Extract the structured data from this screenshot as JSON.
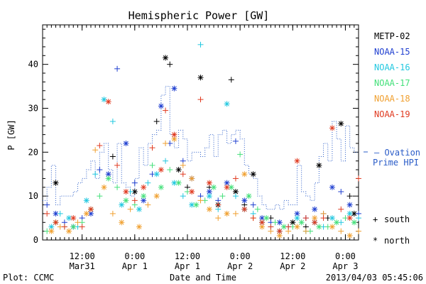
{
  "chart_data": {
    "type": "scatter",
    "title": "Hemispheric Power [GW]",
    "ylabel": "P [GW]",
    "xlabel": "Date and Time",
    "ylim": [
      0,
      49
    ],
    "yticks": [
      0,
      10,
      20,
      30,
      40
    ],
    "xlim_hours": [
      0,
      72
    ],
    "xticks": [
      {
        "h": 9,
        "top": "12:00",
        "bottom": "Mar31"
      },
      {
        "h": 21,
        "top": "0:00",
        "bottom": "Apr 1"
      },
      {
        "h": 33,
        "top": "12:00",
        "bottom": "Apr 1"
      },
      {
        "h": 45,
        "top": "0:00",
        "bottom": "Apr 2"
      },
      {
        "h": 57,
        "top": "12:00",
        "bottom": "Apr 2"
      },
      {
        "h": 69,
        "top": "0:00",
        "bottom": "Apr 3"
      }
    ],
    "legend": {
      "placement": "right",
      "entries": [
        {
          "name": "METP-02",
          "color": "#000000"
        },
        {
          "name": "NOAA-15",
          "color": "#1f3fd0"
        },
        {
          "name": "NOAA-16",
          "color": "#22c8e0"
        },
        {
          "name": "NOAA-17",
          "color": "#44e07a"
        },
        {
          "name": "NOAA-18",
          "color": "#f0a030"
        },
        {
          "name": "NOAA-19",
          "color": "#e03a20"
        }
      ]
    },
    "ovation": {
      "label_line1": "— Ovation",
      "label_line2": "Prime HPI",
      "color": "#2a5cc8",
      "steps": [
        [
          0,
          9
        ],
        [
          1,
          12
        ],
        [
          2,
          17
        ],
        [
          3,
          8
        ],
        [
          4,
          10
        ],
        [
          6,
          10
        ],
        [
          7,
          11
        ],
        [
          8,
          13
        ],
        [
          9,
          14
        ],
        [
          10,
          16
        ],
        [
          11,
          18
        ],
        [
          12,
          14
        ],
        [
          13,
          20
        ],
        [
          14,
          22
        ],
        [
          15,
          16
        ],
        [
          16,
          13
        ],
        [
          17,
          22
        ],
        [
          18,
          13
        ],
        [
          19,
          12
        ],
        [
          20,
          10
        ],
        [
          21,
          14
        ],
        [
          22,
          21
        ],
        [
          23,
          17
        ],
        [
          24,
          22
        ],
        [
          25,
          24
        ],
        [
          26,
          25
        ],
        [
          27,
          33
        ],
        [
          28,
          35
        ],
        [
          29,
          24
        ],
        [
          30,
          21
        ],
        [
          31,
          25
        ],
        [
          32,
          23
        ],
        [
          33,
          18
        ],
        [
          34,
          20
        ],
        [
          35,
          20
        ],
        [
          36,
          19
        ],
        [
          37,
          21
        ],
        [
          38,
          24
        ],
        [
          39,
          19
        ],
        [
          40,
          24
        ],
        [
          41,
          25
        ],
        [
          42,
          22
        ],
        [
          43,
          24
        ],
        [
          44,
          25
        ],
        [
          45,
          23
        ],
        [
          46,
          17
        ],
        [
          47,
          15
        ],
        [
          48,
          14
        ],
        [
          49,
          10
        ],
        [
          50,
          8
        ],
        [
          51,
          7
        ],
        [
          52,
          7
        ],
        [
          53,
          8
        ],
        [
          54,
          7
        ],
        [
          55,
          9
        ],
        [
          56,
          8
        ],
        [
          57,
          8
        ],
        [
          58,
          17
        ],
        [
          59,
          11
        ],
        [
          60,
          10
        ],
        [
          61,
          9
        ],
        [
          62,
          13
        ],
        [
          63,
          19
        ],
        [
          64,
          22
        ],
        [
          65,
          18
        ],
        [
          66,
          27
        ],
        [
          67,
          23
        ],
        [
          68,
          18
        ],
        [
          69,
          26
        ],
        [
          70,
          21
        ],
        [
          71,
          20
        ],
        [
          72,
          20
        ]
      ]
    },
    "symbols": [
      {
        "name": "south",
        "glyph": "+"
      },
      {
        "name": "north",
        "glyph": "*"
      }
    ],
    "series": [
      {
        "name": "METP-02",
        "points": [
          [
            3,
            13
          ],
          [
            16,
            19
          ],
          [
            21,
            11
          ],
          [
            26,
            27
          ],
          [
            28,
            41.5
          ],
          [
            29,
            40
          ],
          [
            31,
            16
          ],
          [
            33,
            12
          ],
          [
            36,
            37
          ],
          [
            38,
            12
          ],
          [
            40,
            8
          ],
          [
            43,
            36.5
          ],
          [
            44,
            11
          ],
          [
            46,
            8
          ],
          [
            48,
            15
          ],
          [
            52,
            5
          ],
          [
            57,
            4
          ],
          [
            60,
            3
          ],
          [
            63,
            17
          ],
          [
            65,
            5
          ],
          [
            68,
            26.5
          ],
          [
            70,
            10
          ],
          [
            71,
            6
          ]
        ]
      },
      {
        "name": "NOAA-15",
        "points": [
          [
            1,
            8
          ],
          [
            3,
            6
          ],
          [
            5,
            4
          ],
          [
            7,
            3
          ],
          [
            9,
            5
          ],
          [
            11,
            6
          ],
          [
            13,
            16
          ],
          [
            15,
            15
          ],
          [
            17,
            39
          ],
          [
            19,
            22
          ],
          [
            21,
            13
          ],
          [
            23,
            9
          ],
          [
            25,
            15
          ],
          [
            27,
            30.5
          ],
          [
            29,
            22
          ],
          [
            30,
            34.5
          ],
          [
            32,
            18
          ],
          [
            34,
            14
          ],
          [
            36,
            10
          ],
          [
            38,
            11
          ],
          [
            40,
            9
          ],
          [
            42,
            13
          ],
          [
            44,
            22.5
          ],
          [
            46,
            9
          ],
          [
            48,
            8
          ],
          [
            50,
            5
          ],
          [
            52,
            4
          ],
          [
            54,
            4
          ],
          [
            56,
            3
          ],
          [
            58,
            6
          ],
          [
            60,
            5
          ],
          [
            62,
            7
          ],
          [
            64,
            6
          ],
          [
            66,
            12
          ],
          [
            68,
            11
          ],
          [
            70,
            8
          ],
          [
            72,
            6
          ]
        ]
      },
      {
        "name": "NOAA-16",
        "points": [
          [
            2,
            3
          ],
          [
            4,
            6
          ],
          [
            6,
            5
          ],
          [
            8,
            3
          ],
          [
            10,
            9
          ],
          [
            12,
            15
          ],
          [
            14,
            32
          ],
          [
            16,
            27
          ],
          [
            18,
            8
          ],
          [
            20,
            11
          ],
          [
            22,
            7
          ],
          [
            24,
            13
          ],
          [
            26,
            15
          ],
          [
            28,
            18
          ],
          [
            30,
            13
          ],
          [
            32,
            10
          ],
          [
            34,
            8
          ],
          [
            36,
            44.5
          ],
          [
            38,
            10
          ],
          [
            40,
            7
          ],
          [
            42,
            31
          ],
          [
            44,
            10
          ],
          [
            46,
            7
          ],
          [
            48,
            6
          ],
          [
            50,
            4
          ],
          [
            52,
            3
          ],
          [
            54,
            2
          ],
          [
            56,
            3
          ],
          [
            58,
            5
          ],
          [
            60,
            2
          ],
          [
            62,
            4
          ],
          [
            64,
            3
          ],
          [
            66,
            5
          ],
          [
            68,
            4
          ],
          [
            70,
            6
          ],
          [
            72,
            5
          ]
        ]
      },
      {
        "name": "NOAA-17",
        "points": [
          [
            1,
            2
          ],
          [
            3,
            4
          ],
          [
            5,
            3
          ],
          [
            7,
            3
          ],
          [
            9,
            4
          ],
          [
            11,
            7
          ],
          [
            13,
            10
          ],
          [
            15,
            14
          ],
          [
            17,
            12
          ],
          [
            19,
            9
          ],
          [
            21,
            8
          ],
          [
            23,
            10
          ],
          [
            25,
            17
          ],
          [
            27,
            12
          ],
          [
            29,
            16
          ],
          [
            31,
            13
          ],
          [
            33,
            11
          ],
          [
            35,
            8
          ],
          [
            37,
            9
          ],
          [
            39,
            12
          ],
          [
            41,
            10
          ],
          [
            43,
            12
          ],
          [
            45,
            19.5
          ],
          [
            47,
            10
          ],
          [
            49,
            7
          ],
          [
            51,
            5
          ],
          [
            53,
            4
          ],
          [
            55,
            3
          ],
          [
            57,
            3
          ],
          [
            59,
            4
          ],
          [
            61,
            2
          ],
          [
            63,
            3
          ],
          [
            65,
            3
          ],
          [
            67,
            4
          ],
          [
            69,
            5
          ],
          [
            71,
            4
          ]
        ]
      },
      {
        "name": "NOAA-18",
        "points": [
          [
            2,
            2
          ],
          [
            4,
            3
          ],
          [
            6,
            2
          ],
          [
            8,
            4
          ],
          [
            10,
            6
          ],
          [
            12,
            20.5
          ],
          [
            14,
            12
          ],
          [
            16,
            6
          ],
          [
            18,
            4
          ],
          [
            20,
            7
          ],
          [
            22,
            3
          ],
          [
            24,
            8
          ],
          [
            26,
            10
          ],
          [
            28,
            22
          ],
          [
            30,
            23
          ],
          [
            32,
            17
          ],
          [
            34,
            14
          ],
          [
            36,
            9
          ],
          [
            38,
            7
          ],
          [
            40,
            5
          ],
          [
            42,
            6
          ],
          [
            44,
            6
          ],
          [
            46,
            15
          ],
          [
            48,
            5
          ],
          [
            50,
            3
          ],
          [
            52,
            2
          ],
          [
            54,
            1
          ],
          [
            56,
            2
          ],
          [
            58,
            3
          ],
          [
            60,
            2
          ],
          [
            62,
            5
          ],
          [
            64,
            6
          ],
          [
            66,
            3
          ],
          [
            68,
            2
          ],
          [
            70,
            1
          ],
          [
            72,
            2
          ]
        ]
      },
      {
        "name": "NOAA-19",
        "points": [
          [
            1,
            6
          ],
          [
            3,
            4
          ],
          [
            5,
            3
          ],
          [
            7,
            5
          ],
          [
            9,
            3
          ],
          [
            11,
            7
          ],
          [
            13,
            21.5
          ],
          [
            15,
            31.5
          ],
          [
            17,
            17
          ],
          [
            19,
            11
          ],
          [
            21,
            9
          ],
          [
            23,
            12
          ],
          [
            25,
            21
          ],
          [
            27,
            16
          ],
          [
            28,
            29.5
          ],
          [
            30,
            24
          ],
          [
            32,
            15
          ],
          [
            34,
            11
          ],
          [
            36,
            32
          ],
          [
            38,
            13
          ],
          [
            40,
            8
          ],
          [
            42,
            12
          ],
          [
            44,
            14
          ],
          [
            46,
            7
          ],
          [
            48,
            5
          ],
          [
            50,
            4
          ],
          [
            52,
            3
          ],
          [
            54,
            2
          ],
          [
            56,
            3
          ],
          [
            58,
            18
          ],
          [
            60,
            5
          ],
          [
            62,
            4
          ],
          [
            64,
            5
          ],
          [
            66,
            25.5
          ],
          [
            68,
            7
          ],
          [
            70,
            5
          ],
          [
            72,
            14
          ]
        ]
      }
    ]
  },
  "footer": {
    "left": "Plot: CCMC",
    "right": "2013/04/03 05:45:06"
  }
}
